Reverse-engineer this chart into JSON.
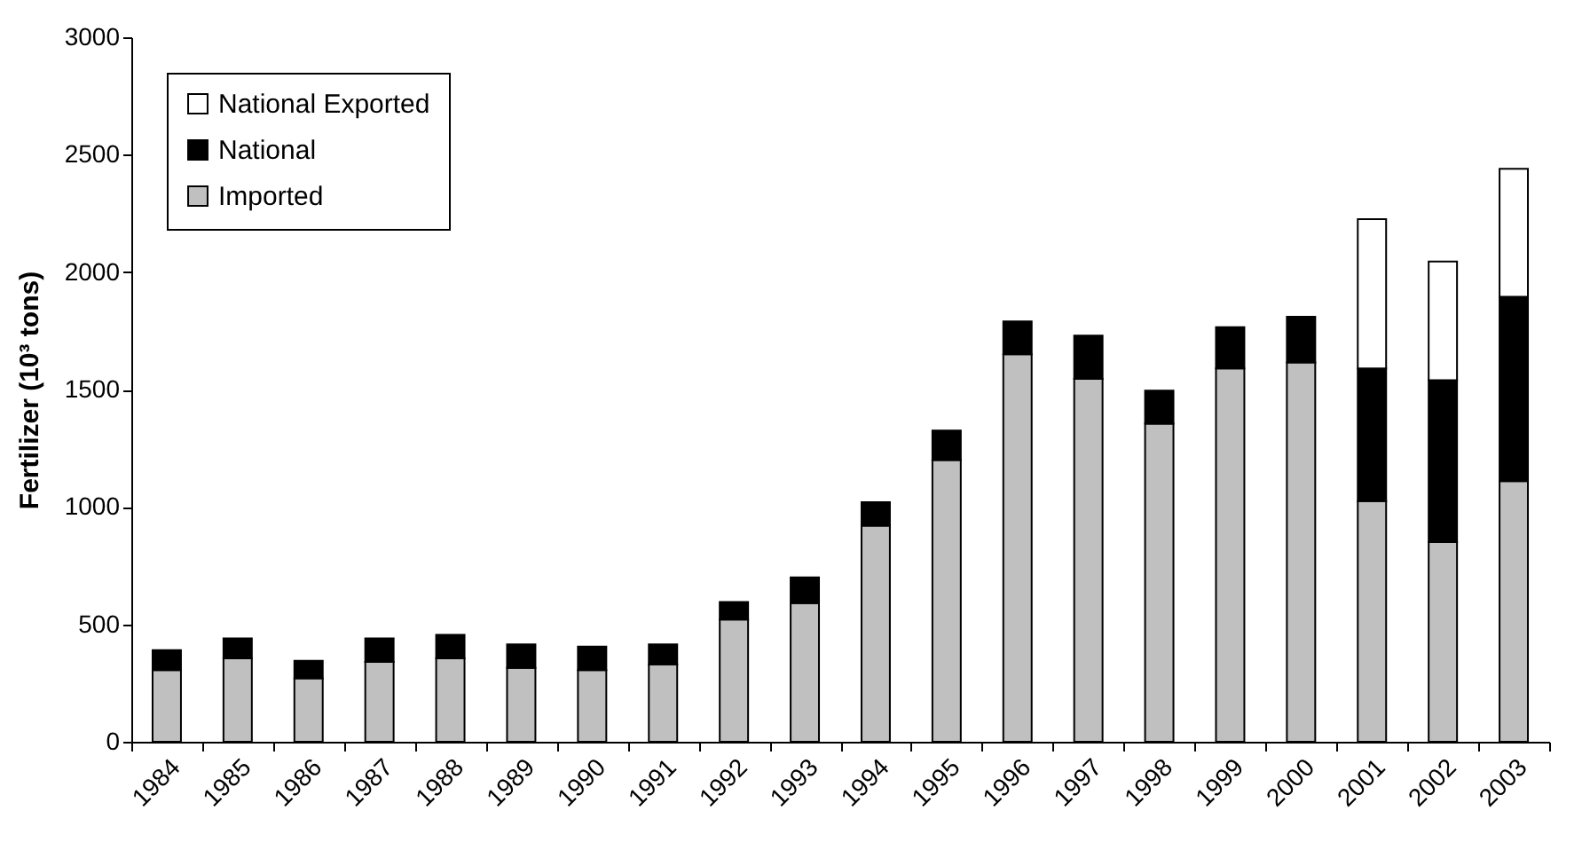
{
  "chart_data": {
    "type": "bar",
    "ylabel": "Fertilizer (10³ tons)",
    "categories": [
      "1984",
      "1985",
      "1986",
      "1987",
      "1988",
      "1989",
      "1990",
      "1991",
      "1992",
      "1993",
      "1994",
      "1995",
      "1996",
      "1997",
      "1998",
      "1999",
      "2000",
      "2001",
      "2002",
      "2003"
    ],
    "series": [
      {
        "name": "Imported",
        "color": "#c0c0c0",
        "values": [
          305,
          355,
          270,
          340,
          355,
          315,
          305,
          330,
          520,
          590,
          920,
          1200,
          1650,
          1545,
          1355,
          1590,
          1615,
          1025,
          850,
          1110
        ]
      },
      {
        "name": "National",
        "color": "#000000",
        "values": [
          85,
          85,
          75,
          100,
          100,
          100,
          100,
          85,
          75,
          110,
          100,
          125,
          140,
          185,
          140,
          175,
          195,
          565,
          690,
          785
        ]
      },
      {
        "name": "National Exported",
        "color": "#ffffff",
        "values": [
          null,
          null,
          null,
          null,
          null,
          null,
          null,
          null,
          null,
          null,
          null,
          null,
          null,
          null,
          null,
          null,
          null,
          635,
          505,
          545
        ]
      }
    ],
    "stacked": true,
    "ylim": [
      0,
      3000
    ],
    "yticks": [
      0,
      500,
      1000,
      1500,
      2000,
      2500,
      3000
    ],
    "grid": false,
    "legend": "top left"
  }
}
